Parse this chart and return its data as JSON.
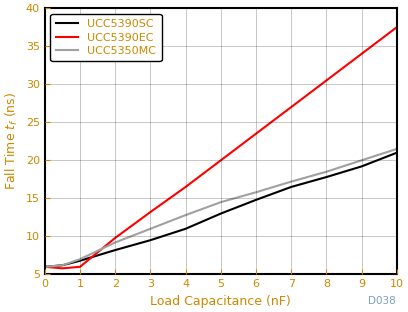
{
  "xlabel": "Load Capacitance (nF)",
  "ylabel": "Fall Time t_f (ns)",
  "xlim": [
    0,
    10
  ],
  "ylim": [
    5,
    40
  ],
  "xticks": [
    0,
    1,
    2,
    3,
    4,
    5,
    6,
    7,
    8,
    9,
    10
  ],
  "yticks": [
    5,
    10,
    15,
    20,
    25,
    30,
    35,
    40
  ],
  "series": [
    {
      "label": "UCC5390SC",
      "color": "#000000",
      "linestyle": "solid",
      "linewidth": 1.5,
      "x": [
        0,
        0.5,
        1.0,
        2.0,
        3.0,
        4.0,
        5.0,
        6.0,
        7.0,
        8.0,
        9.0,
        10.0
      ],
      "y": [
        6.0,
        6.2,
        6.8,
        8.2,
        9.5,
        11.0,
        13.0,
        14.8,
        16.5,
        17.8,
        19.2,
        21.0
      ]
    },
    {
      "label": "UCC5390EC",
      "color": "#ff0000",
      "linestyle": "solid",
      "linewidth": 1.5,
      "x": [
        0,
        0.5,
        1.0,
        2.0,
        3.0,
        4.0,
        5.0,
        6.0,
        7.0,
        8.0,
        9.0,
        10.0
      ],
      "y": [
        6.0,
        5.8,
        6.0,
        9.8,
        13.2,
        16.5,
        20.0,
        23.5,
        27.0,
        30.5,
        34.0,
        37.5
      ]
    },
    {
      "label": "UCC5350MC",
      "color": "#a0a0a0",
      "linestyle": "solid",
      "linewidth": 1.5,
      "x": [
        0,
        0.5,
        1.0,
        2.0,
        3.0,
        4.0,
        5.0,
        6.0,
        7.0,
        8.0,
        9.0,
        10.0
      ],
      "y": [
        6.0,
        6.2,
        7.0,
        9.2,
        11.0,
        12.8,
        14.5,
        15.8,
        17.2,
        18.5,
        20.0,
        21.5
      ]
    }
  ],
  "legend_loc": "upper left",
  "grid_color": "#000000",
  "grid_alpha": 0.25,
  "grid_linewidth": 0.6,
  "annotation": "D038",
  "annotation_color": "#7f9ec0",
  "annotation_fontsize": 7.5,
  "bg_color": "#ffffff",
  "tick_color": "#cc8800",
  "tick_fontsize": 8,
  "label_color": "#cc8800",
  "label_fontsize": 9,
  "legend_fontsize": 8,
  "spine_color": "#000000",
  "spine_linewidth": 1.5
}
